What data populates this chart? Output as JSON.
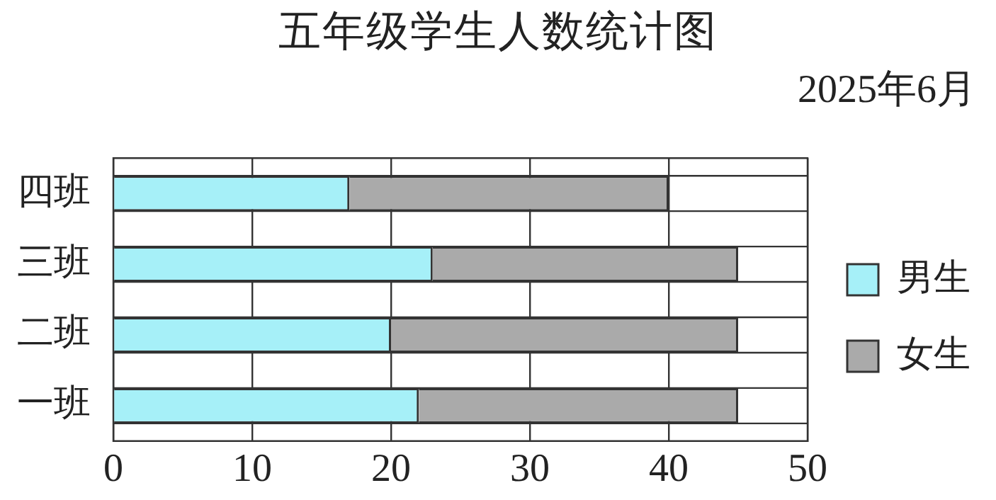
{
  "chart_data": {
    "type": "bar",
    "orientation": "horizontal",
    "stacked": true,
    "title": "五年级学生人数统计图",
    "subtitle": "2025年6月",
    "categories": [
      "四班",
      "三班",
      "二班",
      "一班"
    ],
    "series": [
      {
        "name": "男生",
        "color": "#a6f0f8",
        "values": [
          17,
          23,
          20,
          22
        ]
      },
      {
        "name": "女生",
        "color": "#aaaaaa",
        "values": [
          23,
          22,
          25,
          23
        ]
      }
    ],
    "xlim": [
      0,
      50
    ],
    "xticks": [
      0,
      10,
      20,
      30,
      40,
      50
    ],
    "grid": true,
    "legend": "right"
  }
}
